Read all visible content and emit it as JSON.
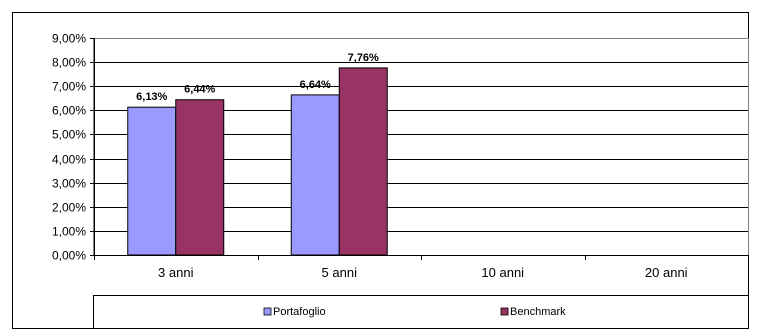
{
  "chart_data": {
    "type": "bar",
    "categories": [
      "3 anni",
      "5 anni",
      "10 anni",
      "20 anni"
    ],
    "series": [
      {
        "name": "Portafoglio",
        "values": [
          6.13,
          6.64,
          null,
          null
        ],
        "labels": [
          "6,13%",
          "6,64%",
          "",
          ""
        ],
        "color": "#9999ff"
      },
      {
        "name": "Benchmark",
        "values": [
          6.44,
          7.76,
          null,
          null
        ],
        "labels": [
          "6,44%",
          "7,76%",
          "",
          ""
        ],
        "color": "#993366"
      }
    ],
    "ylim": [
      0,
      9
    ],
    "ytick_values": [
      0,
      1,
      2,
      3,
      4,
      5,
      6,
      7,
      8,
      9
    ],
    "ytick_labels": [
      "0,00%",
      "1,00%",
      "2,00%",
      "3,00%",
      "4,00%",
      "5,00%",
      "6,00%",
      "7,00%",
      "8,00%",
      "9,00%"
    ],
    "grid": true,
    "legend_position": "bottom",
    "title": "",
    "xlabel": "",
    "ylabel": ""
  }
}
